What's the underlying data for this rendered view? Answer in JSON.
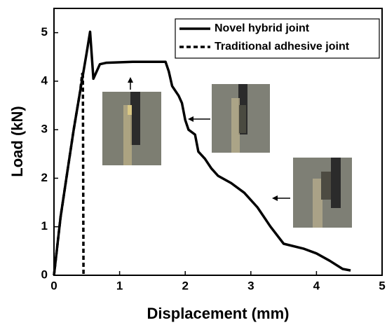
{
  "chart_data": {
    "type": "line",
    "x_label": "Displacement (mm)",
    "y_label": "Load (kN)",
    "xlim": [
      0,
      5
    ],
    "ylim": [
      0,
      5.5
    ],
    "xticks": [
      0,
      1,
      2,
      3,
      4,
      5
    ],
    "yticks": [
      0,
      1,
      2,
      3,
      4,
      5
    ],
    "legend": "upper right",
    "series": [
      {
        "name": "Novel hybrid joint",
        "color": "#000000",
        "dash": "solid",
        "x": [
          0,
          0.05,
          0.1,
          0.2,
          0.3,
          0.4,
          0.5,
          0.55,
          0.6,
          0.7,
          0.8,
          1.2,
          1.7,
          1.75,
          1.8,
          1.9,
          1.95,
          2.0,
          2.05,
          2.15,
          2.2,
          2.3,
          2.4,
          2.5,
          2.7,
          2.9,
          3.1,
          3.3,
          3.5,
          3.8,
          4.0,
          4.2,
          4.4,
          4.52
        ],
        "values": [
          0,
          0.6,
          1.2,
          2.1,
          3.0,
          3.8,
          4.6,
          5.02,
          4.05,
          4.35,
          4.38,
          4.4,
          4.4,
          4.2,
          3.9,
          3.7,
          3.55,
          3.2,
          3.0,
          2.9,
          2.55,
          2.4,
          2.2,
          2.05,
          1.9,
          1.7,
          1.4,
          1.0,
          0.65,
          0.55,
          0.45,
          0.3,
          0.13,
          0.1
        ]
      },
      {
        "name": "Traditional adhesive joint",
        "color": "#000000",
        "dash": "dashed",
        "x": [
          0,
          0.1,
          0.2,
          0.3,
          0.4,
          0.43,
          0.44,
          0.45
        ],
        "values": [
          0,
          1.2,
          2.1,
          3.0,
          3.8,
          4.15,
          4.1,
          0
        ]
      }
    ]
  }
}
